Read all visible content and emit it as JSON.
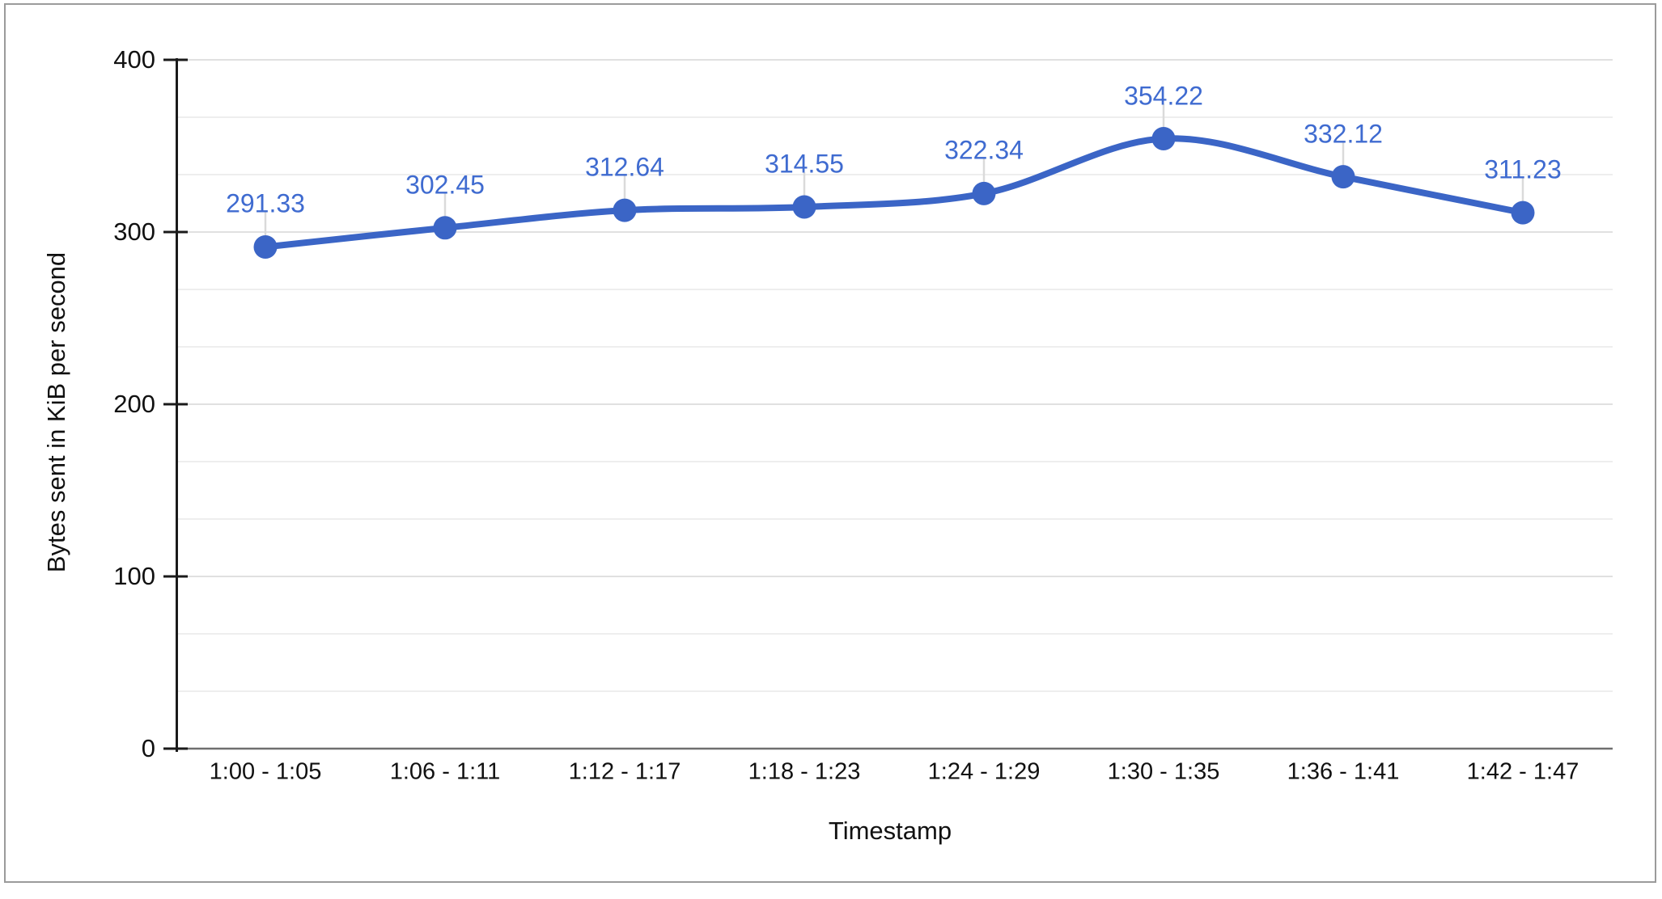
{
  "chart_data": {
    "type": "line",
    "smooth": true,
    "categories": [
      "1:00 - 1:05",
      "1:06 - 1:11",
      "1:12 - 1:17",
      "1:18 - 1:23",
      "1:24 - 1:29",
      "1:30 - 1:35",
      "1:36 - 1:41",
      "1:42 - 1:47"
    ],
    "values": [
      291.33,
      302.45,
      312.64,
      314.55,
      322.34,
      354.22,
      332.12,
      311.23
    ],
    "value_labels": [
      "291.33",
      "302.45",
      "312.64",
      "314.55",
      "322.34",
      "354.22",
      "332.12",
      "311.23"
    ],
    "xlabel": "Timestamp",
    "ylabel": "Bytes sent in KiB per second",
    "yticks": [
      0,
      100,
      200,
      300,
      400
    ],
    "ytick_labels": [
      "0",
      "100",
      "200",
      "300",
      "400"
    ],
    "ylim": [
      0,
      400
    ],
    "grid": {
      "horizontal_major": true,
      "minor_divisions_per_major": 3,
      "vertical": false
    },
    "legend": "none",
    "annotations_shown": true
  },
  "colors": {
    "series": "#3b65c6",
    "annotation_text": "#3f6bd0",
    "grid_major": "#e0e0e0",
    "grid_minor": "#eeeeee",
    "baseline": "#6f6f6f",
    "axis": "#1a1a1a",
    "tick_text": "#111111",
    "annotation_stem": "#dadada",
    "frame_border": "#9b9b9b",
    "background": "#ffffff"
  }
}
